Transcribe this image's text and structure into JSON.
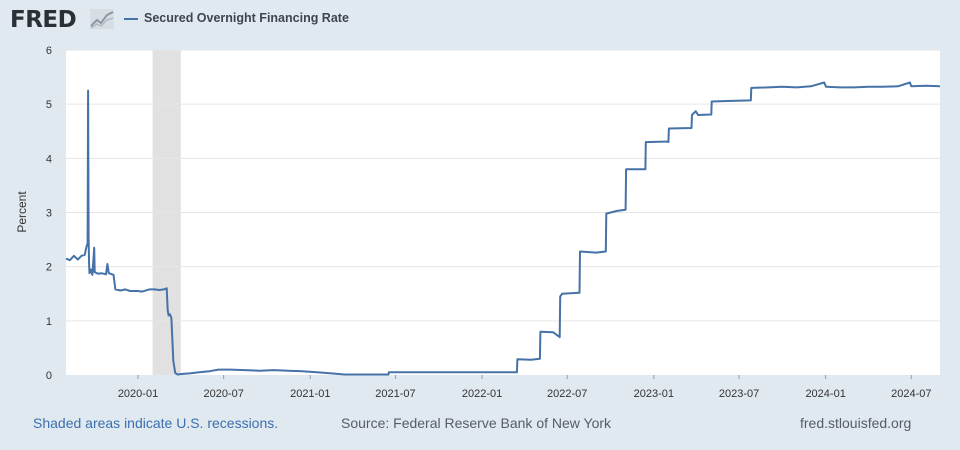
{
  "header": {
    "logo_text": "FRED",
    "logo_icon": "line-chart-icon",
    "legend_label": "Secured Overnight Financing Rate",
    "series_color": "#4572a7"
  },
  "footer": {
    "recession_note": "Shaded areas indicate U.S. recessions.",
    "source": "Source: Federal Reserve Bank of New York",
    "site": "fred.stlouisfed.org"
  },
  "chart_data": {
    "type": "line",
    "title": "Secured Overnight Financing Rate",
    "xlabel": "",
    "ylabel": "Percent",
    "x_range": [
      "2019-08",
      "2024-08-31"
    ],
    "ylim": [
      0,
      6
    ],
    "y_ticks": [
      "0",
      "1",
      "2",
      "3",
      "4",
      "5",
      "6"
    ],
    "x_ticks": [
      "2020-01",
      "2020-07",
      "2021-01",
      "2021-07",
      "2022-01",
      "2022-07",
      "2023-01",
      "2023-07",
      "2024-01",
      "2024-07"
    ],
    "grid": true,
    "recession": {
      "start": "2020-02",
      "end": "2020-04"
    },
    "series": [
      {
        "name": "Secured Overnight Financing Rate",
        "points": [
          [
            "2019-08-01",
            2.15
          ],
          [
            "2019-08-09",
            2.12
          ],
          [
            "2019-08-18",
            2.2
          ],
          [
            "2019-08-26",
            2.13
          ],
          [
            "2019-09-03",
            2.2
          ],
          [
            "2019-09-10",
            2.22
          ],
          [
            "2019-09-13",
            2.35
          ],
          [
            "2019-09-16",
            2.43
          ],
          [
            "2019-09-17",
            5.25
          ],
          [
            "2019-09-18",
            2.55
          ],
          [
            "2019-09-19",
            2.03
          ],
          [
            "2019-09-20",
            1.88
          ],
          [
            "2019-09-23",
            1.95
          ],
          [
            "2019-09-26",
            1.85
          ],
          [
            "2019-09-30",
            2.35
          ],
          [
            "2019-10-01",
            1.9
          ],
          [
            "2019-10-08",
            1.87
          ],
          [
            "2019-10-15",
            1.88
          ],
          [
            "2019-10-25",
            1.86
          ],
          [
            "2019-10-28",
            2.05
          ],
          [
            "2019-10-31",
            1.88
          ],
          [
            "2019-11-10",
            1.85
          ],
          [
            "2019-11-14",
            1.58
          ],
          [
            "2019-11-25",
            1.56
          ],
          [
            "2019-12-05",
            1.58
          ],
          [
            "2019-12-15",
            1.55
          ],
          [
            "2019-12-31",
            1.55
          ],
          [
            "2020-01-10",
            1.54
          ],
          [
            "2020-01-25",
            1.58
          ],
          [
            "2020-02-05",
            1.58
          ],
          [
            "2020-02-15",
            1.57
          ],
          [
            "2020-02-25",
            1.58
          ],
          [
            "2020-03-02",
            1.6
          ],
          [
            "2020-03-04",
            1.2
          ],
          [
            "2020-03-06",
            1.1
          ],
          [
            "2020-03-09",
            1.12
          ],
          [
            "2020-03-12",
            1.05
          ],
          [
            "2020-03-16",
            0.26
          ],
          [
            "2020-03-20",
            0.04
          ],
          [
            "2020-03-25",
            0.01
          ],
          [
            "2020-04-05",
            0.02
          ],
          [
            "2020-04-20",
            0.03
          ],
          [
            "2020-05-10",
            0.05
          ],
          [
            "2020-06-01",
            0.07
          ],
          [
            "2020-06-20",
            0.1
          ],
          [
            "2020-07-15",
            0.1
          ],
          [
            "2020-08-15",
            0.09
          ],
          [
            "2020-09-15",
            0.08
          ],
          [
            "2020-10-15",
            0.09
          ],
          [
            "2020-11-15",
            0.08
          ],
          [
            "2020-12-15",
            0.07
          ],
          [
            "2021-01-15",
            0.05
          ],
          [
            "2021-02-15",
            0.03
          ],
          [
            "2021-03-15",
            0.01
          ],
          [
            "2021-04-15",
            0.01
          ],
          [
            "2021-05-15",
            0.01
          ],
          [
            "2021-06-16",
            0.01
          ],
          [
            "2021-06-17",
            0.05
          ],
          [
            "2021-08-15",
            0.05
          ],
          [
            "2021-10-15",
            0.05
          ],
          [
            "2021-12-15",
            0.05
          ],
          [
            "2022-02-15",
            0.05
          ],
          [
            "2022-03-16",
            0.05
          ],
          [
            "2022-03-17",
            0.29
          ],
          [
            "2022-04-15",
            0.28
          ],
          [
            "2022-05-04",
            0.3
          ],
          [
            "2022-05-05",
            0.8
          ],
          [
            "2022-06-01",
            0.79
          ],
          [
            "2022-06-15",
            0.7
          ],
          [
            "2022-06-16",
            1.45
          ],
          [
            "2022-06-20",
            1.5
          ],
          [
            "2022-07-27",
            1.52
          ],
          [
            "2022-07-28",
            2.28
          ],
          [
            "2022-08-31",
            2.26
          ],
          [
            "2022-09-21",
            2.28
          ],
          [
            "2022-09-22",
            2.98
          ],
          [
            "2022-10-15",
            3.03
          ],
          [
            "2022-11-02",
            3.05
          ],
          [
            "2022-11-03",
            3.8
          ],
          [
            "2022-12-14",
            3.8
          ],
          [
            "2022-12-15",
            4.3
          ],
          [
            "2023-01-31",
            4.31
          ],
          [
            "2023-02-01",
            4.3
          ],
          [
            "2023-02-02",
            4.55
          ],
          [
            "2023-03-22",
            4.56
          ],
          [
            "2023-03-23",
            4.8
          ],
          [
            "2023-03-31",
            4.87
          ],
          [
            "2023-04-05",
            4.8
          ],
          [
            "2023-05-03",
            4.81
          ],
          [
            "2023-05-04",
            5.05
          ],
          [
            "2023-06-15",
            5.06
          ],
          [
            "2023-07-26",
            5.07
          ],
          [
            "2023-07-27",
            5.3
          ],
          [
            "2023-09-01",
            5.31
          ],
          [
            "2023-10-01",
            5.32
          ],
          [
            "2023-11-01",
            5.31
          ],
          [
            "2023-12-01",
            5.33
          ],
          [
            "2023-12-29",
            5.4
          ],
          [
            "2024-01-02",
            5.32
          ],
          [
            "2024-02-01",
            5.31
          ],
          [
            "2024-03-01",
            5.31
          ],
          [
            "2024-04-01",
            5.32
          ],
          [
            "2024-05-01",
            5.32
          ],
          [
            "2024-06-03",
            5.33
          ],
          [
            "2024-06-28",
            5.4
          ],
          [
            "2024-07-01",
            5.33
          ],
          [
            "2024-08-01",
            5.34
          ],
          [
            "2024-08-31",
            5.33
          ]
        ]
      }
    ]
  }
}
